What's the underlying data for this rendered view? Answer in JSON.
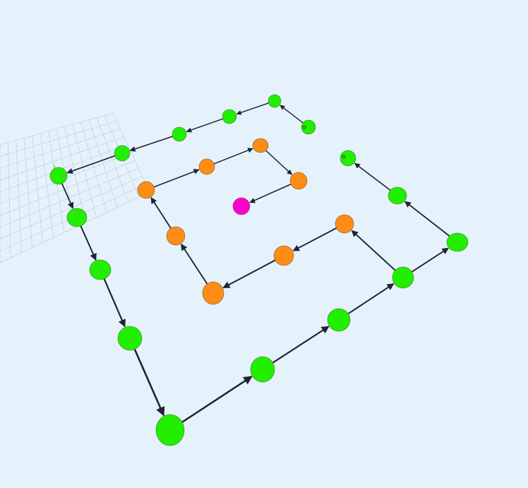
{
  "scene": {
    "background": "#e6f2fb",
    "grid_color": "#c3d3e0",
    "edge_color": "#1e2430",
    "colors": {
      "green": "#22ee00",
      "orange": "#ff8c14",
      "magenta": "#ff00cc"
    },
    "node_count": 25,
    "outer_path_nodes": 17,
    "inner_path_nodes": 8
  }
}
